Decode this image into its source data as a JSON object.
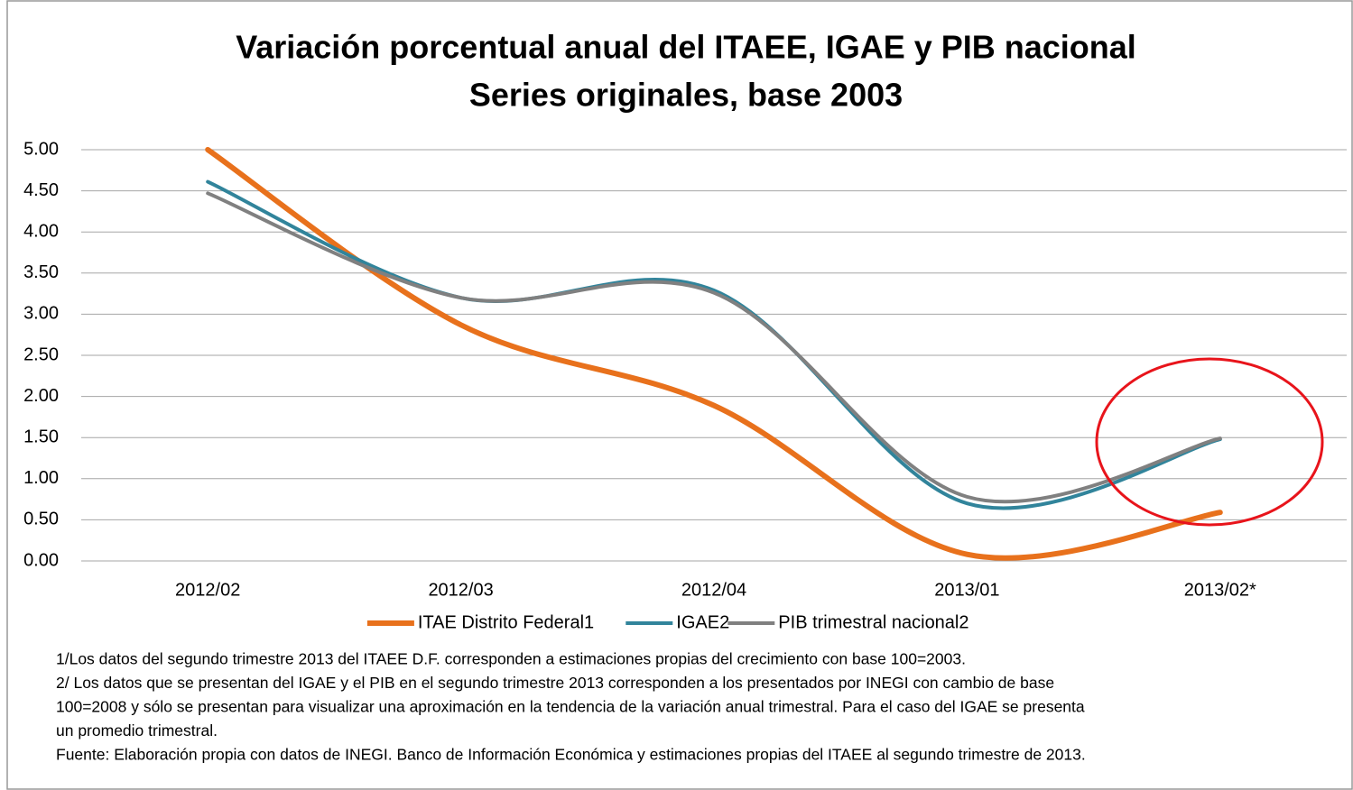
{
  "chart_data": {
    "type": "line",
    "title": "Variación porcentual anual del ITAEE, IGAE y PIB nacional",
    "subtitle": "Series originales, base 2003",
    "categories": [
      "2012/02",
      "2012/03",
      "2012/04",
      "2013/01",
      "2013/02*"
    ],
    "series": [
      {
        "name": "ITAE Distrito Federal1",
        "color": "#e8711c",
        "width": 6,
        "values": [
          5.0,
          2.87,
          1.89,
          0.08,
          0.59
        ]
      },
      {
        "name": "IGAE2",
        "color": "#31849b",
        "width": 4,
        "values": [
          4.61,
          3.2,
          3.29,
          0.7,
          1.48
        ]
      },
      {
        "name": "PIB trimestral nacional2",
        "color": "#808080",
        "width": 4,
        "values": [
          4.47,
          3.2,
          3.26,
          0.78,
          1.49
        ]
      }
    ],
    "ylim": [
      0,
      5
    ],
    "yticks": [
      {
        "value": 0,
        "label": "0.00"
      },
      {
        "value": 0.5,
        "label": "0.50"
      },
      {
        "value": 1,
        "label": "1.00"
      },
      {
        "value": 1.5,
        "label": "1.50"
      },
      {
        "value": 2,
        "label": "2.00"
      },
      {
        "value": 2.5,
        "label": "2.50"
      },
      {
        "value": 3,
        "label": "3.00"
      },
      {
        "value": 3.5,
        "label": "3.50"
      },
      {
        "value": 4,
        "label": "4.00"
      },
      {
        "value": 4.5,
        "label": "4.50"
      },
      {
        "value": 5,
        "label": "5.00"
      }
    ],
    "grid": true,
    "legend": "bottom",
    "smooth": true,
    "notes": [
      "1/Los datos del segundo trimestre 2013 del ITAEE D.F. corresponden a estimaciones propias del crecimiento  con base 100=2003.",
      "2/ Los datos que se presentan del IGAE y el PIB en el segundo trimestre 2013 corresponden a los presentados por INEGI con cambio de base",
      "100=2008 y sólo se presentan para visualizar una aproximación en la tendencia de la variación anual trimestral. Para el caso del IGAE se presenta",
      "un promedio trimestral.",
      "Fuente: Elaboración propia con datos de INEGI. Banco de Información Económica y estimaciones propias del ITAEE al segundo trimestre de 2013."
    ]
  }
}
